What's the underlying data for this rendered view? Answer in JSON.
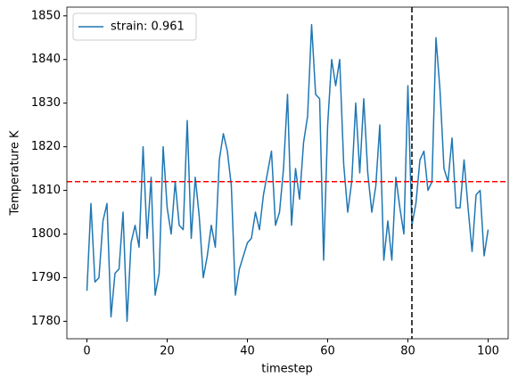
{
  "chart_data": {
    "type": "line",
    "x": [
      0,
      1,
      2,
      3,
      4,
      5,
      6,
      7,
      8,
      9,
      10,
      11,
      12,
      13,
      14,
      15,
      16,
      17,
      18,
      19,
      20,
      21,
      22,
      23,
      24,
      25,
      26,
      27,
      28,
      29,
      30,
      31,
      32,
      33,
      34,
      35,
      36,
      37,
      38,
      39,
      40,
      41,
      42,
      43,
      44,
      45,
      46,
      47,
      48,
      49,
      50,
      51,
      52,
      53,
      54,
      55,
      56,
      57,
      58,
      59,
      60,
      61,
      62,
      63,
      64,
      65,
      66,
      67,
      68,
      69,
      70,
      71,
      72,
      73,
      74,
      75,
      76,
      77,
      78,
      79,
      80,
      81,
      82,
      83,
      84,
      85,
      86,
      87,
      88,
      89,
      90,
      91,
      92,
      93,
      94,
      95,
      96,
      97,
      98,
      99,
      100
    ],
    "series": [
      {
        "name": "strain: 0.961",
        "color": "#1f77b4",
        "values": [
          1787,
          1807,
          1789,
          1790,
          1803,
          1807,
          1781,
          1791,
          1792,
          1805,
          1780,
          1798,
          1802,
          1797,
          1820,
          1799,
          1813,
          1786,
          1791,
          1820,
          1806,
          1800,
          1812,
          1802,
          1801,
          1826,
          1799,
          1813,
          1804,
          1790,
          1795,
          1802,
          1797,
          1817,
          1823,
          1819,
          1811,
          1786,
          1792,
          1795,
          1798,
          1799,
          1805,
          1801,
          1809,
          1814,
          1819,
          1802,
          1805,
          1815,
          1832,
          1802,
          1815,
          1808,
          1821,
          1827,
          1848,
          1832,
          1831,
          1794,
          1825,
          1840,
          1834,
          1840,
          1816,
          1805,
          1812,
          1830,
          1814,
          1831,
          1814,
          1805,
          1811,
          1825,
          1794,
          1803,
          1794,
          1813,
          1806,
          1800,
          1834,
          1802,
          1807,
          1817,
          1819,
          1810,
          1812,
          1845,
          1833,
          1815,
          1812,
          1822,
          1806,
          1806,
          1817,
          1806,
          1796,
          1809,
          1810,
          1795,
          1801
        ]
      }
    ],
    "hline": {
      "value": 1812,
      "color": "red"
    },
    "vline": {
      "value": 81,
      "color": "black"
    },
    "xlabel": "timestep",
    "ylabel": "Temperature K",
    "xlim": [
      -5,
      105
    ],
    "ylim": [
      1776,
      1852
    ],
    "xticks": [
      0,
      20,
      40,
      60,
      80,
      100
    ],
    "yticks": [
      1780,
      1790,
      1800,
      1810,
      1820,
      1830,
      1840,
      1850
    ],
    "legend": "upper left",
    "grid": false
  }
}
